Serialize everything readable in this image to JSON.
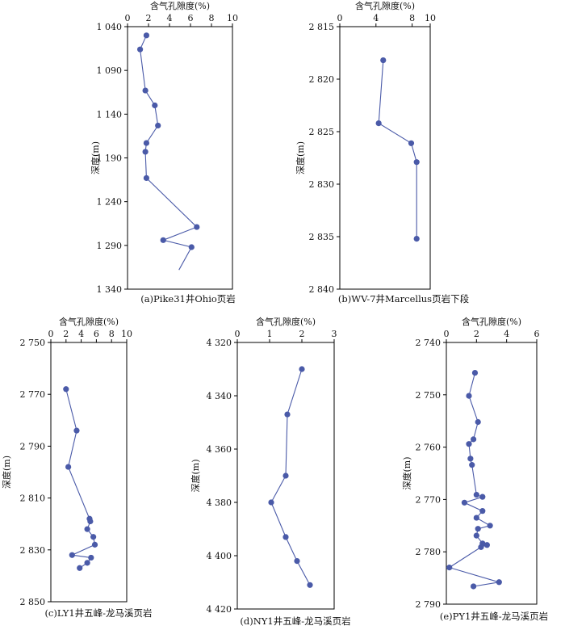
{
  "chart_data": [
    {
      "type": "line",
      "caption": "(a)Pike31井Ohio页岩",
      "xlabel": "含气孔隙度(%)",
      "ylabel": "深度(m)",
      "xlim": [
        0,
        10
      ],
      "xticks": [
        "0",
        "2",
        "4",
        "6",
        "8",
        "10"
      ],
      "ylim": [
        1040,
        1340
      ],
      "yticks": [
        "1 040",
        "1 090",
        "1 140",
        "1 190",
        "1 240",
        "1 290",
        "1 340"
      ],
      "points": [
        {
          "x": 1.8,
          "y": 1050
        },
        {
          "x": 1.2,
          "y": 1066
        },
        {
          "x": 1.7,
          "y": 1113
        },
        {
          "x": 2.6,
          "y": 1130
        },
        {
          "x": 2.9,
          "y": 1153
        },
        {
          "x": 1.8,
          "y": 1173
        },
        {
          "x": 1.7,
          "y": 1183
        },
        {
          "x": 1.8,
          "y": 1213
        },
        {
          "x": 6.6,
          "y": 1269
        },
        {
          "x": 3.4,
          "y": 1284
        },
        {
          "x": 6.1,
          "y": 1292
        }
      ],
      "tail": {
        "x": 4.9,
        "y": 1318
      }
    },
    {
      "type": "line",
      "caption": "(b)WV-7井Marcellus页岩下段",
      "xlabel": "含气孔隙度(%)",
      "ylabel": "深度(m)",
      "xlim": [
        0,
        10
      ],
      "xticks": [
        "0",
        "4",
        "8",
        "10"
      ],
      "ylim": [
        2815,
        2840
      ],
      "yticks": [
        "2 815",
        "2 820",
        "2 825",
        "2 830",
        "2 835",
        "2 840"
      ],
      "points": [
        {
          "x": 4.8,
          "y": 2818.2
        },
        {
          "x": 4.3,
          "y": 2824.2
        },
        {
          "x": 7.9,
          "y": 2826.1
        },
        {
          "x": 8.5,
          "y": 2827.9
        },
        {
          "x": 8.5,
          "y": 2835.2
        }
      ]
    },
    {
      "type": "line",
      "caption": "(c)LY1井五峰-龙马溪页岩",
      "xlabel": "含气孔隙度(%)",
      "ylabel": "深度(m)",
      "xlim": [
        0,
        10
      ],
      "xticks": [
        "0",
        "2",
        "4",
        "6",
        "8",
        "10"
      ],
      "ylim": [
        2750,
        2850
      ],
      "yticks": [
        "2 750",
        "2 770",
        "2 790",
        "2 810",
        "2 830",
        "2 850"
      ],
      "points": [
        {
          "x": 2.0,
          "y": 2768
        },
        {
          "x": 3.4,
          "y": 2784
        },
        {
          "x": 2.3,
          "y": 2798
        },
        {
          "x": 5.1,
          "y": 2818
        },
        {
          "x": 5.2,
          "y": 2819
        },
        {
          "x": 4.8,
          "y": 2822
        },
        {
          "x": 5.6,
          "y": 2825
        },
        {
          "x": 5.8,
          "y": 2828
        },
        {
          "x": 2.8,
          "y": 2832
        },
        {
          "x": 5.3,
          "y": 2833
        },
        {
          "x": 4.8,
          "y": 2835
        },
        {
          "x": 3.8,
          "y": 2837
        }
      ]
    },
    {
      "type": "line",
      "caption": "(d)NY1井五峰-龙马溪页岩",
      "xlabel": "含气孔隙度(%)",
      "ylabel": "深度(m)",
      "xlim": [
        0,
        3
      ],
      "xticks": [
        "0",
        "1",
        "2",
        "3"
      ],
      "ylim": [
        4320,
        4420
      ],
      "yticks": [
        "4 320",
        "4 340",
        "4 360",
        "4 380",
        "4 400",
        "4 420"
      ],
      "points": [
        {
          "x": 2.0,
          "y": 4330
        },
        {
          "x": 1.55,
          "y": 4347
        },
        {
          "x": 1.5,
          "y": 4370
        },
        {
          "x": 1.05,
          "y": 4380
        },
        {
          "x": 1.5,
          "y": 4393
        },
        {
          "x": 1.85,
          "y": 4402
        },
        {
          "x": 2.25,
          "y": 4411
        }
      ]
    },
    {
      "type": "line",
      "caption": "(e)PY1井五峰-龙马溪页岩",
      "xlabel": "含气孔隙度(%)",
      "ylabel": "深度(m)",
      "xlim": [
        0,
        6
      ],
      "xticks": [
        "0",
        "2",
        "4",
        "6"
      ],
      "ylim": [
        2740,
        2790
      ],
      "yticks": [
        "2 740",
        "2 750",
        "2 760",
        "2 770",
        "2 780",
        "2 790"
      ],
      "points": [
        {
          "x": 1.9,
          "y": 2745.8
        },
        {
          "x": 1.5,
          "y": 2750.2
        },
        {
          "x": 2.1,
          "y": 2755.2
        },
        {
          "x": 1.8,
          "y": 2758.5
        },
        {
          "x": 1.5,
          "y": 2759.4
        },
        {
          "x": 1.6,
          "y": 2762.2
        },
        {
          "x": 1.7,
          "y": 2763.4
        },
        {
          "x": 2.0,
          "y": 2769.1
        },
        {
          "x": 2.4,
          "y": 2769.5
        },
        {
          "x": 1.2,
          "y": 2770.6
        },
        {
          "x": 2.4,
          "y": 2772.2
        },
        {
          "x": 2.0,
          "y": 2773.5
        },
        {
          "x": 2.9,
          "y": 2775.0
        },
        {
          "x": 2.1,
          "y": 2775.6
        },
        {
          "x": 2.0,
          "y": 2776.9
        },
        {
          "x": 2.4,
          "y": 2778.4
        },
        {
          "x": 2.7,
          "y": 2778.7
        },
        {
          "x": 2.3,
          "y": 2779.1
        },
        {
          "x": 0.2,
          "y": 2783.0
        },
        {
          "x": 3.5,
          "y": 2785.8
        },
        {
          "x": 1.8,
          "y": 2786.6
        }
      ]
    }
  ]
}
